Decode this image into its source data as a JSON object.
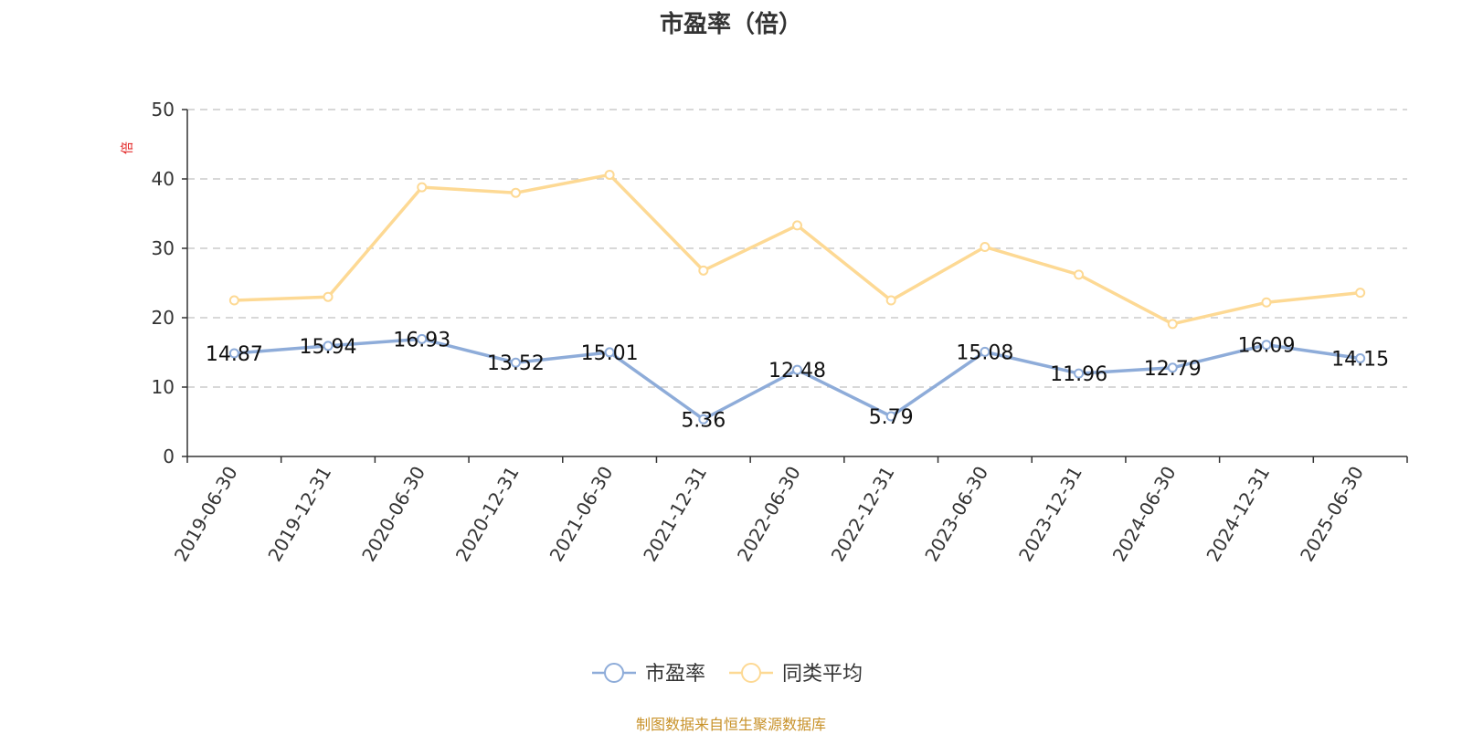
{
  "chart_data": {
    "type": "line",
    "title": "市盈率（倍）",
    "ylabel": "倍",
    "ylim": [
      0,
      50
    ],
    "yticks": [
      0,
      10,
      20,
      30,
      40,
      50
    ],
    "grid": "horizontal-dashed",
    "legend_position": "bottom-center",
    "categories": [
      "2019-06-30",
      "2019-12-31",
      "2020-06-30",
      "2020-12-31",
      "2021-06-30",
      "2021-12-31",
      "2022-06-30",
      "2022-12-31",
      "2023-06-30",
      "2023-12-31",
      "2024-06-30",
      "2024-12-31",
      "2025-06-30"
    ],
    "series": [
      {
        "name": "市盈率",
        "color": "#8eacd9",
        "values": [
          14.87,
          15.94,
          16.93,
          13.52,
          15.01,
          5.36,
          12.48,
          5.79,
          15.08,
          11.96,
          12.79,
          16.09,
          14.15
        ],
        "labels": [
          "14.87",
          "15.94",
          "16.93",
          "13.52",
          "15.01",
          "5.36",
          "12.48",
          "5.79",
          "15.08",
          "11.96",
          "12.79",
          "16.09",
          "14.15"
        ]
      },
      {
        "name": "同类平均",
        "color": "#fdd994",
        "values": [
          22.5,
          23.0,
          38.8,
          38.0,
          40.6,
          26.8,
          33.3,
          22.5,
          30.2,
          26.2,
          19.1,
          22.2,
          23.6
        ]
      }
    ]
  },
  "source": "制图数据来自恒生聚源数据库"
}
